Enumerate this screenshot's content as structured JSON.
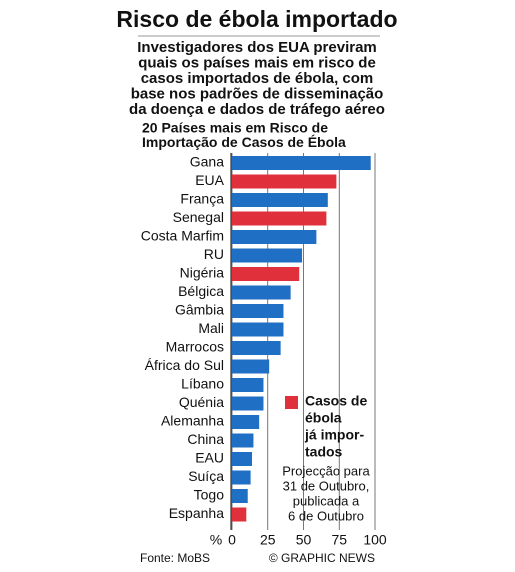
{
  "chart_data": {
    "type": "bar",
    "title": "Risco de ébola importado",
    "subtitle_lines": [
      "Investigadores dos EUA previram",
      "quais os países mais em risco de",
      "casos importados de ébola, com",
      "base nos padrões de disseminação",
      "da doença e dados de tráfego aéreo"
    ],
    "chart_title_lines": [
      "20 Países mais em Risco de",
      "Importação de Casos de Ébola"
    ],
    "categories": [
      "Gana",
      "EUA",
      "França",
      "Senegal",
      "Costa Marfim",
      "RU",
      "Nigéria",
      "Bélgica",
      "Gâmbia",
      "Mali",
      "Marrocos",
      "África do Sul",
      "Líbano",
      "Quénia",
      "Alemanha",
      "China",
      "EAU",
      "Suíça",
      "Togo",
      "Espanha"
    ],
    "values": [
      97,
      73,
      67,
      66,
      59,
      49,
      47,
      41,
      36,
      36,
      34,
      26,
      22,
      22,
      19,
      15,
      14,
      13,
      11,
      10
    ],
    "colors": [
      "#1f6fc5",
      "#e0303c",
      "#1f6fc5",
      "#e0303c",
      "#1f6fc5",
      "#1f6fc5",
      "#e0303c",
      "#1f6fc5",
      "#1f6fc5",
      "#1f6fc5",
      "#1f6fc5",
      "#1f6fc5",
      "#1f6fc5",
      "#1f6fc5",
      "#1f6fc5",
      "#1f6fc5",
      "#1f6fc5",
      "#1f6fc5",
      "#1f6fc5",
      "#e0303c"
    ],
    "xlim": [
      0,
      100
    ],
    "xticks": [
      0,
      25,
      50,
      75,
      100
    ],
    "x_unit": "%",
    "grid": true,
    "legend": {
      "color": "#e0303c",
      "lines": [
        "Casos de",
        "ébola",
        "já impor-",
        "tados"
      ]
    },
    "note_lines": [
      "Projecção para",
      "31 de Outubro,",
      "publicada a",
      "6 de Outubro"
    ],
    "source": "Fonte: MoBS",
    "credit": "© GRAPHIC NEWS"
  }
}
